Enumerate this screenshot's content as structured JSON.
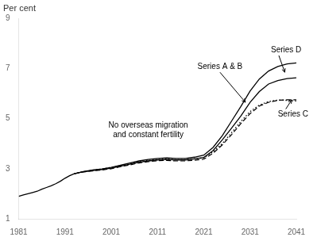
{
  "chart_data": {
    "type": "line",
    "ylabel": "Per cent",
    "xlim": [
      1981,
      2041
    ],
    "ylim": [
      1,
      9
    ],
    "xticks": [
      1981,
      1991,
      2001,
      2011,
      2021,
      2031,
      2041
    ],
    "yticks": [
      1,
      3,
      5,
      7,
      9
    ],
    "grid": false,
    "series": [
      {
        "color": "#000000",
        "line_style": "solid",
        "x": [
          1981,
          1982,
          1983,
          1984,
          1985,
          1986,
          1987,
          1988,
          1989,
          1990,
          1991,
          1992,
          1993
        ],
        "values": [
          1.9,
          1.95,
          2.0,
          2.05,
          2.1,
          2.18,
          2.25,
          2.32,
          2.4,
          2.5,
          2.62,
          2.72,
          2.8
        ]
      },
      {
        "color": "#000000",
        "line_style": "solid",
        "x": [
          1993,
          1995,
          1997,
          1999,
          2001,
          2003,
          2005,
          2007,
          2009,
          2011,
          2013,
          2015,
          2017,
          2019,
          2021,
          2023,
          2025,
          2027,
          2029,
          2031,
          2033,
          2035,
          2037,
          2039,
          2041
        ],
        "values": [
          2.8,
          2.88,
          2.93,
          2.97,
          3.02,
          3.1,
          3.18,
          3.26,
          3.31,
          3.35,
          3.37,
          3.35,
          3.35,
          3.39,
          3.45,
          3.72,
          4.15,
          4.62,
          5.1,
          5.65,
          6.08,
          6.38,
          6.52,
          6.6,
          6.63
        ]
      },
      {
        "color": "#000000",
        "line_style": "solid",
        "x": [
          1993,
          1995,
          1997,
          1999,
          2001,
          2003,
          2005,
          2007,
          2009,
          2011,
          2013,
          2015,
          2017,
          2019,
          2021,
          2023,
          2025,
          2027,
          2029,
          2031,
          2033,
          2035,
          2037,
          2039,
          2041
        ],
        "values": [
          2.8,
          2.89,
          2.95,
          2.99,
          3.05,
          3.14,
          3.23,
          3.31,
          3.37,
          3.41,
          3.43,
          3.41,
          3.41,
          3.46,
          3.54,
          3.85,
          4.32,
          4.9,
          5.48,
          6.1,
          6.58,
          6.9,
          7.08,
          7.18,
          7.22
        ]
      },
      {
        "color": "#000000",
        "line_style": "dashed",
        "x": [
          1993,
          1995,
          1997,
          1999,
          2001,
          2003,
          2005,
          2007,
          2009,
          2011,
          2013,
          2015,
          2017,
          2019,
          2021,
          2023,
          2025,
          2027,
          2029,
          2031,
          2033,
          2035,
          2037,
          2039,
          2041
        ],
        "values": [
          2.8,
          2.87,
          2.91,
          2.95,
          3.0,
          3.08,
          3.15,
          3.23,
          3.28,
          3.32,
          3.33,
          3.31,
          3.31,
          3.34,
          3.38,
          3.62,
          3.95,
          4.36,
          4.8,
          5.2,
          5.5,
          5.65,
          5.73,
          5.75,
          5.75
        ]
      },
      {
        "color": "#000000",
        "line_style": "dotted",
        "x": [
          1993,
          1995,
          1997,
          1999,
          2001,
          2003,
          2005,
          2007,
          2009,
          2011,
          2013,
          2015,
          2017,
          2019,
          2021,
          2023,
          2025,
          2027,
          2029,
          2031,
          2033,
          2035,
          2037,
          2039,
          2041
        ],
        "values": [
          2.8,
          2.88,
          2.94,
          2.99,
          3.05,
          3.12,
          3.2,
          3.28,
          3.33,
          3.37,
          3.38,
          3.36,
          3.36,
          3.4,
          3.43,
          3.68,
          4.0,
          4.44,
          4.88,
          5.28,
          5.54,
          5.68,
          5.74,
          5.73,
          5.7
        ]
      }
    ],
    "annotations": [
      {
        "text": "Series A & B",
        "x": 2024.5,
        "y": 6.88,
        "arrow_to": [
          2030,
          5.65
        ]
      },
      {
        "text": "Series D",
        "x": 2035.5,
        "y": 7.55,
        "arrow_to": [
          2038.5,
          6.85
        ]
      },
      {
        "text": "Series C",
        "x": 2037,
        "y": 5.35,
        "arrow_to": [
          2040,
          5.75
        ]
      },
      {
        "text": "No overseas migration\nand constant fertility",
        "x": 2009,
        "y": 4.55
      }
    ]
  }
}
